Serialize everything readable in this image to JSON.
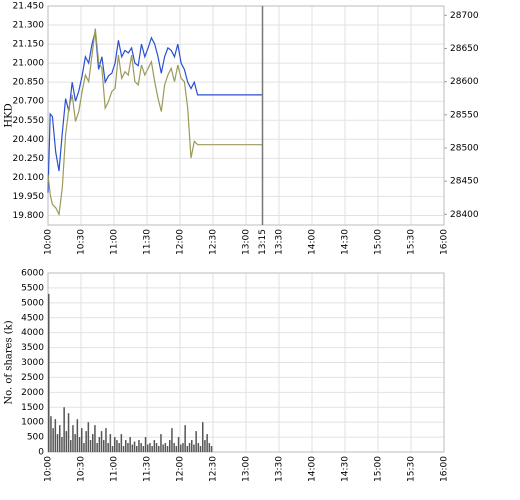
{
  "chart_data": [
    {
      "type": "line",
      "y_label": "HKD",
      "x": [
        600,
        602,
        604,
        607,
        610,
        613,
        616,
        619,
        622,
        625,
        628,
        631,
        634,
        637,
        640,
        643,
        646,
        649,
        652,
        655,
        658,
        661,
        664,
        667,
        670,
        673,
        676,
        679,
        682,
        685,
        688,
        691,
        694,
        697,
        700,
        703,
        706,
        709,
        712,
        715,
        718,
        721,
        724,
        727,
        730,
        733,
        736,
        795
      ],
      "series": [
        {
          "color": "#2a4fd1",
          "values": [
            19.98,
            20.6,
            20.58,
            20.3,
            20.15,
            20.45,
            20.72,
            20.62,
            20.85,
            20.7,
            20.78,
            20.9,
            21.05,
            21.0,
            21.15,
            21.25,
            20.95,
            21.05,
            20.85,
            20.9,
            20.92,
            21.0,
            21.18,
            21.05,
            21.1,
            21.08,
            21.12,
            21.0,
            20.98,
            21.15,
            21.05,
            21.12,
            21.2,
            21.15,
            21.05,
            20.92,
            21.05,
            21.12,
            21.1,
            21.05,
            21.15,
            21.0,
            20.95,
            20.85,
            20.8,
            20.85,
            20.75,
            20.75
          ]
        },
        {
          "color": "#9a9a5a",
          "axis": "y2",
          "values": [
            28460,
            28430,
            28415,
            28410,
            28400,
            28440,
            28520,
            28560,
            28580,
            28540,
            28555,
            28585,
            28610,
            28600,
            28640,
            28680,
            28630,
            28620,
            28560,
            28570,
            28585,
            28590,
            28640,
            28605,
            28615,
            28610,
            28640,
            28600,
            28595,
            28625,
            28610,
            28620,
            28630,
            28600,
            28575,
            28555,
            28595,
            28610,
            28620,
            28600,
            28625,
            28605,
            28600,
            28560,
            28485,
            28510,
            28505,
            28505
          ]
        }
      ],
      "xlim": [
        600,
        960
      ],
      "xticks": [
        {
          "value": 600,
          "label": "10:00"
        },
        {
          "value": 630,
          "label": "10:30"
        },
        {
          "value": 660,
          "label": "11:00"
        },
        {
          "value": 690,
          "label": "11:30"
        },
        {
          "value": 720,
          "label": "12:00"
        },
        {
          "value": 750,
          "label": "12:30"
        },
        {
          "value": 780,
          "label": "13:00"
        },
        {
          "value": 810,
          "label": "13:30"
        },
        {
          "value": 840,
          "label": "14:00"
        },
        {
          "value": 870,
          "label": "14:30"
        },
        {
          "value": 900,
          "label": "15:00"
        },
        {
          "value": 930,
          "label": "15:30"
        },
        {
          "value": 960,
          "label": "16:00"
        }
      ],
      "marker": {
        "value": 795,
        "label": "13:15"
      },
      "ylim": [
        19.725,
        21.45
      ],
      "yticks": [
        {
          "value": 19.8,
          "label": "19.800"
        },
        {
          "value": 19.95,
          "label": "19.950"
        },
        {
          "value": 20.1,
          "label": "20.100"
        },
        {
          "value": 20.25,
          "label": "20.250"
        },
        {
          "value": 20.4,
          "label": "20.400"
        },
        {
          "value": 20.55,
          "label": "20.550"
        },
        {
          "value": 20.7,
          "label": "20.700"
        },
        {
          "value": 20.85,
          "label": "20.850"
        },
        {
          "value": 21.0,
          "label": "21.000"
        },
        {
          "value": 21.15,
          "label": "21.150"
        },
        {
          "value": 21.3,
          "label": "21.300"
        },
        {
          "value": 21.45,
          "label": "21.450"
        }
      ],
      "y2lim": [
        28384,
        28714
      ],
      "y2ticks": [
        28400,
        28450,
        28500,
        28550,
        28600,
        28650,
        28700
      ],
      "grid": true
    },
    {
      "type": "bar",
      "y_label": "No. of shares (k)",
      "color": "#555555",
      "x": [
        600,
        602,
        604,
        606,
        608,
        610,
        612,
        614,
        616,
        618,
        620,
        622,
        624,
        626,
        628,
        630,
        632,
        634,
        636,
        638,
        640,
        642,
        644,
        646,
        648,
        650,
        652,
        654,
        656,
        658,
        660,
        662,
        664,
        666,
        668,
        670,
        672,
        674,
        676,
        678,
        680,
        682,
        684,
        686,
        688,
        690,
        692,
        694,
        696,
        698,
        700,
        702,
        704,
        706,
        708,
        710,
        712,
        714,
        716,
        718,
        720,
        722,
        724,
        726,
        728,
        730,
        732,
        734,
        736,
        738,
        740,
        742,
        744,
        746,
        748
      ],
      "values": [
        5300,
        1200,
        800,
        1100,
        600,
        900,
        500,
        1500,
        700,
        1300,
        400,
        900,
        600,
        1100,
        500,
        800,
        300,
        700,
        1000,
        400,
        600,
        900,
        300,
        500,
        700,
        400,
        800,
        300,
        600,
        200,
        500,
        400,
        300,
        600,
        200,
        400,
        300,
        500,
        250,
        350,
        200,
        400,
        300,
        200,
        500,
        250,
        300,
        200,
        400,
        300,
        200,
        600,
        250,
        300,
        200,
        400,
        800,
        300,
        200,
        500,
        250,
        300,
        900,
        200,
        300,
        400,
        250,
        700,
        300,
        200,
        1000,
        400,
        600,
        300,
        200
      ],
      "xlim": [
        600,
        960
      ],
      "xticks": [
        {
          "value": 600,
          "label": "10:00"
        },
        {
          "value": 630,
          "label": "10:30"
        },
        {
          "value": 660,
          "label": "11:00"
        },
        {
          "value": 690,
          "label": "11:30"
        },
        {
          "value": 720,
          "label": "12:00"
        },
        {
          "value": 750,
          "label": "12:30"
        },
        {
          "value": 780,
          "label": "13:00"
        },
        {
          "value": 810,
          "label": "13:30"
        },
        {
          "value": 840,
          "label": "14:00"
        },
        {
          "value": 870,
          "label": "14:30"
        },
        {
          "value": 900,
          "label": "15:00"
        },
        {
          "value": 930,
          "label": "15:30"
        },
        {
          "value": 960,
          "label": "16:00"
        }
      ],
      "ylim": [
        0,
        6000
      ],
      "yticks": [
        0,
        500,
        1000,
        1500,
        2000,
        2500,
        3000,
        3500,
        4000,
        4500,
        5000,
        5500,
        6000
      ],
      "grid": true
    }
  ]
}
